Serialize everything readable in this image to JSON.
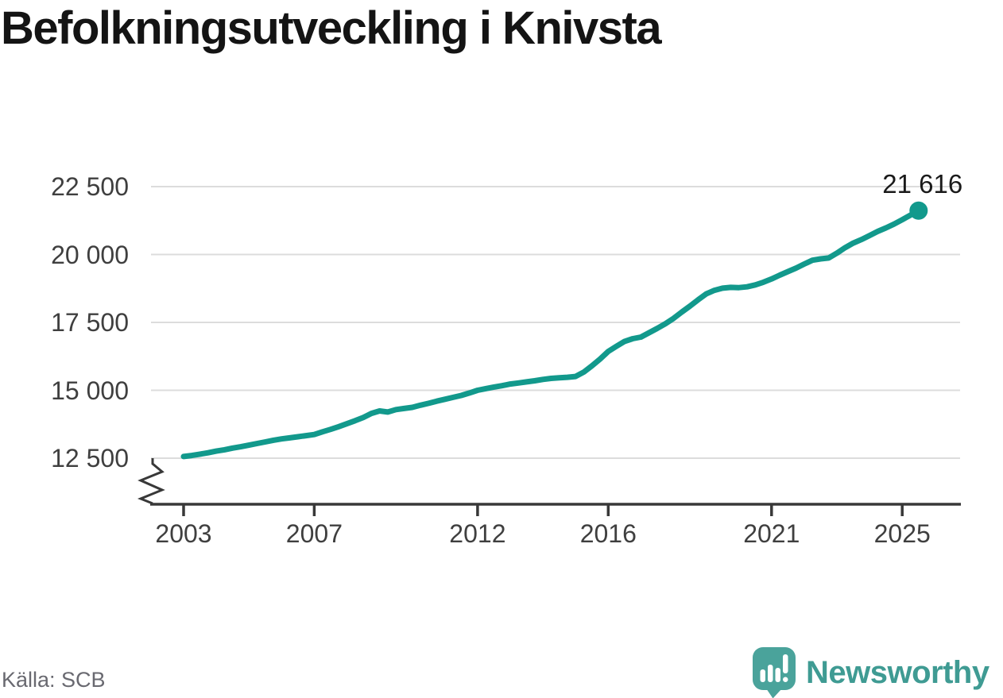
{
  "title": "Befolkningsutveckling i Knivsta",
  "source": "Källa: SCB",
  "branding": {
    "name": "Newsworthy",
    "icon": "newsworthy-speech-bubble-bar-chart-icon"
  },
  "colors": {
    "background": "#FFFFFF",
    "line": "#12998C",
    "grid": "#DCDCDC",
    "axis": "#383838",
    "tick_text": "#3F3F3F",
    "title_text": "#141414",
    "end_label_text": "#1A1A1A",
    "source_text": "#696970",
    "brand_text": "#3F9B93",
    "brand_icon": "#4AA39B"
  },
  "chart_data": {
    "type": "line",
    "title": "Befolkningsutveckling i Knivsta",
    "ylabel": "",
    "xlabel": "",
    "unit": "invånare",
    "legend": "none",
    "grid": "horizontal",
    "axis_break_bottom_left": true,
    "ylim_display": [
      12500,
      22500
    ],
    "xlim_display": [
      2003,
      2026.3
    ],
    "end_label": "21 616",
    "end_value": 21616,
    "y_ticks": [
      {
        "value": 22500,
        "label": "22 500"
      },
      {
        "value": 20000,
        "label": "20 000"
      },
      {
        "value": 17500,
        "label": "17 500"
      },
      {
        "value": 15000,
        "label": "15 000"
      },
      {
        "value": 12500,
        "label": "12 500"
      }
    ],
    "x_ticks": [
      {
        "year": 2003,
        "label": "2003"
      },
      {
        "year": 2007,
        "label": "2007"
      },
      {
        "year": 2012,
        "label": "2012"
      },
      {
        "year": 2016,
        "label": "2016"
      },
      {
        "year": 2021,
        "label": "2021"
      },
      {
        "year": 2025,
        "label": "2025"
      }
    ],
    "series": [
      {
        "name": "Befolkning i Knivsta",
        "points": [
          [
            2003.0,
            12560
          ],
          [
            2003.25,
            12600
          ],
          [
            2003.5,
            12650
          ],
          [
            2003.75,
            12700
          ],
          [
            2004.0,
            12760
          ],
          [
            2004.25,
            12810
          ],
          [
            2004.5,
            12870
          ],
          [
            2004.75,
            12920
          ],
          [
            2005.0,
            12980
          ],
          [
            2005.25,
            13040
          ],
          [
            2005.5,
            13100
          ],
          [
            2005.75,
            13160
          ],
          [
            2006.0,
            13210
          ],
          [
            2006.25,
            13250
          ],
          [
            2006.5,
            13290
          ],
          [
            2006.75,
            13330
          ],
          [
            2007.0,
            13370
          ],
          [
            2007.25,
            13470
          ],
          [
            2007.5,
            13560
          ],
          [
            2007.75,
            13660
          ],
          [
            2008.0,
            13770
          ],
          [
            2008.25,
            13880
          ],
          [
            2008.5,
            14000
          ],
          [
            2008.75,
            14150
          ],
          [
            2009.0,
            14240
          ],
          [
            2009.25,
            14200
          ],
          [
            2009.5,
            14290
          ],
          [
            2009.75,
            14330
          ],
          [
            2010.0,
            14370
          ],
          [
            2010.25,
            14450
          ],
          [
            2010.5,
            14520
          ],
          [
            2010.75,
            14600
          ],
          [
            2011.0,
            14670
          ],
          [
            2011.25,
            14740
          ],
          [
            2011.5,
            14810
          ],
          [
            2011.75,
            14900
          ],
          [
            2012.0,
            15000
          ],
          [
            2012.25,
            15060
          ],
          [
            2012.5,
            15120
          ],
          [
            2012.75,
            15170
          ],
          [
            2013.0,
            15230
          ],
          [
            2013.25,
            15270
          ],
          [
            2013.5,
            15310
          ],
          [
            2013.75,
            15350
          ],
          [
            2014.0,
            15400
          ],
          [
            2014.25,
            15440
          ],
          [
            2014.5,
            15460
          ],
          [
            2014.75,
            15480
          ],
          [
            2015.0,
            15510
          ],
          [
            2015.25,
            15670
          ],
          [
            2015.5,
            15900
          ],
          [
            2015.75,
            16150
          ],
          [
            2016.0,
            16430
          ],
          [
            2016.25,
            16620
          ],
          [
            2016.5,
            16800
          ],
          [
            2016.75,
            16900
          ],
          [
            2017.0,
            16960
          ],
          [
            2017.25,
            17120
          ],
          [
            2017.5,
            17280
          ],
          [
            2017.75,
            17450
          ],
          [
            2018.0,
            17650
          ],
          [
            2018.25,
            17880
          ],
          [
            2018.5,
            18100
          ],
          [
            2018.75,
            18330
          ],
          [
            2019.0,
            18550
          ],
          [
            2019.25,
            18680
          ],
          [
            2019.5,
            18760
          ],
          [
            2019.75,
            18790
          ],
          [
            2020.0,
            18780
          ],
          [
            2020.25,
            18810
          ],
          [
            2020.5,
            18880
          ],
          [
            2020.75,
            18980
          ],
          [
            2021.0,
            19100
          ],
          [
            2021.25,
            19240
          ],
          [
            2021.5,
            19370
          ],
          [
            2021.75,
            19500
          ],
          [
            2022.0,
            19650
          ],
          [
            2022.25,
            19790
          ],
          [
            2022.5,
            19840
          ],
          [
            2022.75,
            19870
          ],
          [
            2023.0,
            20050
          ],
          [
            2023.25,
            20250
          ],
          [
            2023.5,
            20420
          ],
          [
            2023.75,
            20550
          ],
          [
            2024.0,
            20700
          ],
          [
            2024.25,
            20850
          ],
          [
            2024.5,
            20980
          ],
          [
            2024.75,
            21120
          ],
          [
            2025.0,
            21280
          ],
          [
            2025.25,
            21450
          ],
          [
            2025.5,
            21616
          ]
        ]
      }
    ]
  }
}
